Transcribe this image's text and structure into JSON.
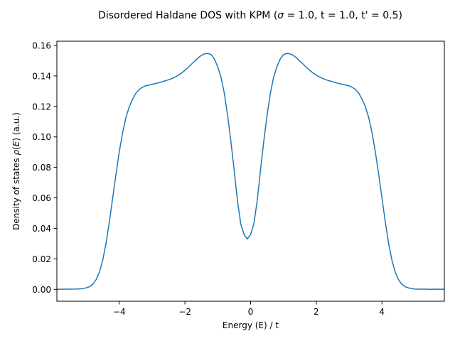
{
  "chart_data": {
    "type": "line",
    "title": "Disordered Haldane DOS with KPM (σ = 1.0, t = 1.0, t' = 0.5)",
    "title_parts": {
      "before": "Disordered Haldane DOS with KPM (",
      "sigma": "σ",
      "after": " = 1.0, t = 1.0, t' = 0.5)"
    },
    "xlabel": "Energy (E) / t",
    "ylabel": "Density of states ρ(E) (a.u.)",
    "ylabel_parts": {
      "before": "Density of states ",
      "rho": "ρ",
      "open": "(",
      "E": "E",
      "after": ") (a.u.)"
    },
    "xlim": [
      -5.9,
      5.9
    ],
    "ylim": [
      -0.0078,
      0.1628
    ],
    "grid": false,
    "line_color": "#1f77b4",
    "x_ticks": [
      {
        "value": -4,
        "label": "−4"
      },
      {
        "value": -2,
        "label": "−2"
      },
      {
        "value": 0,
        "label": "0"
      },
      {
        "value": 2,
        "label": "2"
      },
      {
        "value": 4,
        "label": "4"
      }
    ],
    "y_ticks": [
      {
        "value": 0.0,
        "label": "0.00"
      },
      {
        "value": 0.02,
        "label": "0.02"
      },
      {
        "value": 0.04,
        "label": "0.04"
      },
      {
        "value": 0.06,
        "label": "0.06"
      },
      {
        "value": 0.08,
        "label": "0.08"
      },
      {
        "value": 0.1,
        "label": "0.10"
      },
      {
        "value": 0.12,
        "label": "0.12"
      },
      {
        "value": 0.14,
        "label": "0.14"
      },
      {
        "value": 0.16,
        "label": "0.16"
      }
    ],
    "series": [
      {
        "x": [
          -5.9,
          -5.7,
          -5.5,
          -5.3,
          -5.1,
          -5.0,
          -4.9,
          -4.8,
          -4.7,
          -4.6,
          -4.5,
          -4.4,
          -4.3,
          -4.2,
          -4.1,
          -4.0,
          -3.9,
          -3.8,
          -3.7,
          -3.6,
          -3.5,
          -3.4,
          -3.3,
          -3.2,
          -3.1,
          -3.0,
          -2.9,
          -2.8,
          -2.7,
          -2.6,
          -2.5,
          -2.4,
          -2.3,
          -2.2,
          -2.1,
          -2.0,
          -1.9,
          -1.8,
          -1.7,
          -1.6,
          -1.5,
          -1.4,
          -1.3,
          -1.2,
          -1.1,
          -1.0,
          -0.9,
          -0.8,
          -0.7,
          -0.6,
          -0.5,
          -0.4,
          -0.3,
          -0.2,
          -0.1,
          0.0,
          0.1,
          0.2,
          0.3,
          0.4,
          0.5,
          0.6,
          0.7,
          0.8,
          0.9,
          1.0,
          1.1,
          1.2,
          1.3,
          1.4,
          1.5,
          1.6,
          1.7,
          1.8,
          1.9,
          2.0,
          2.1,
          2.2,
          2.3,
          2.4,
          2.5,
          2.6,
          2.7,
          2.8,
          2.9,
          3.0,
          3.1,
          3.2,
          3.3,
          3.4,
          3.5,
          3.6,
          3.7,
          3.8,
          3.9,
          4.0,
          4.1,
          4.2,
          4.3,
          4.4,
          4.5,
          4.6,
          4.7,
          4.8,
          4.9,
          5.0,
          5.1,
          5.3,
          5.5,
          5.7,
          5.9
        ],
        "y": [
          0.0,
          0.0001,
          0.0001,
          0.0002,
          0.0005,
          0.001,
          0.0018,
          0.0035,
          0.0065,
          0.0115,
          0.0195,
          0.0305,
          0.0445,
          0.06,
          0.0755,
          0.09,
          0.1025,
          0.1125,
          0.1195,
          0.1245,
          0.1285,
          0.131,
          0.1325,
          0.1335,
          0.134,
          0.1345,
          0.135,
          0.1355,
          0.1362,
          0.1368,
          0.1375,
          0.1383,
          0.1393,
          0.1405,
          0.142,
          0.1437,
          0.1456,
          0.1477,
          0.1498,
          0.1518,
          0.1535,
          0.1545,
          0.1548,
          0.154,
          0.151,
          0.146,
          0.139,
          0.1285,
          0.114,
          0.097,
          0.078,
          0.058,
          0.043,
          0.036,
          0.033,
          0.036,
          0.043,
          0.058,
          0.078,
          0.097,
          0.114,
          0.1285,
          0.139,
          0.146,
          0.151,
          0.154,
          0.1548,
          0.1545,
          0.1535,
          0.1518,
          0.1498,
          0.1477,
          0.1456,
          0.1437,
          0.142,
          0.1405,
          0.1393,
          0.1383,
          0.1375,
          0.1368,
          0.1362,
          0.1355,
          0.135,
          0.1345,
          0.134,
          0.1335,
          0.1325,
          0.131,
          0.1285,
          0.1245,
          0.1195,
          0.1125,
          0.1025,
          0.09,
          0.0755,
          0.06,
          0.0445,
          0.0305,
          0.0195,
          0.0115,
          0.0065,
          0.0035,
          0.0018,
          0.001,
          0.0005,
          0.0002,
          0.0001,
          0.0001,
          0.0,
          0.0001,
          0.0
        ]
      }
    ]
  }
}
